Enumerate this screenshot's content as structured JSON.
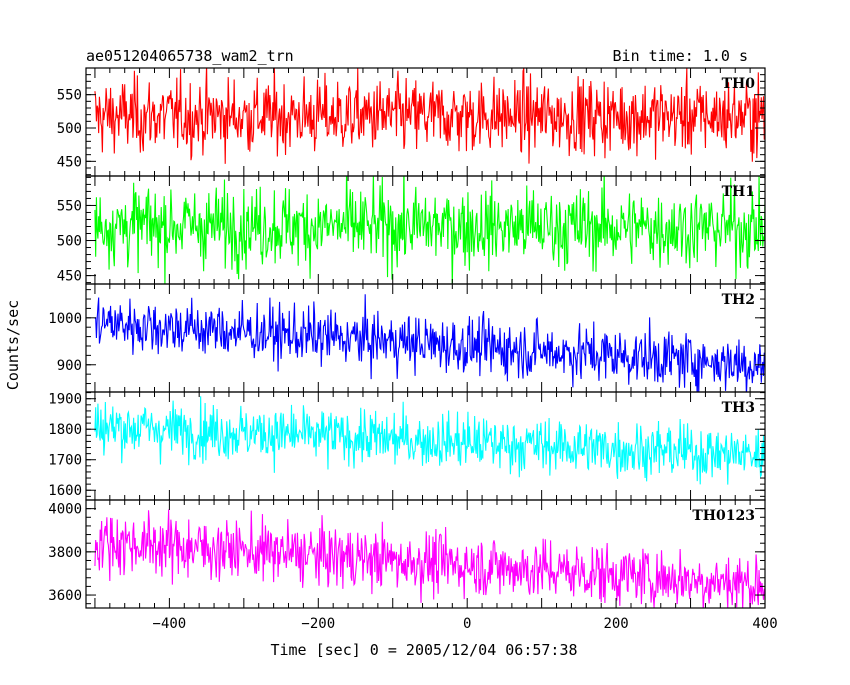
{
  "chart_data": {
    "type": "line",
    "title_left": "ae051204065738_wam2_trn",
    "title_right": "Bin time: 1.0 s",
    "xlabel": "Time [sec] 0 = 2005/12/04 06:57:38",
    "ylabel": "Counts/sec",
    "x_range": [
      -512,
      400
    ],
    "x_ticks": [
      -400,
      -200,
      0,
      200,
      400
    ],
    "x_tick_labels": [
      "−400",
      "−200",
      "0",
      "200",
      "400"
    ],
    "bin_time": 1.0,
    "panels": [
      {
        "name": "TH0",
        "color": "#ff0000",
        "ylim": [
          428,
          590
        ],
        "y_ticks": [
          450,
          500,
          550
        ],
        "y_tick_labels": [
          "450",
          "500",
          "550"
        ],
        "trend": {
          "start": 518,
          "end": 518
        },
        "noise_sd": 28
      },
      {
        "name": "TH1",
        "color": "#00ff00",
        "ylim": [
          438,
          592
        ],
        "y_ticks": [
          450,
          500,
          550
        ],
        "y_tick_labels": [
          "450",
          "500",
          "550"
        ],
        "trend": {
          "start": 522,
          "end": 518
        },
        "noise_sd": 28
      },
      {
        "name": "TH2",
        "color": "#0000ff",
        "ylim": [
          842,
          1072
        ],
        "y_ticks": [
          900,
          1000
        ],
        "y_tick_labels": [
          "900",
          "1000"
        ],
        "trend": {
          "start": 990,
          "end": 900
        },
        "noise_sd": 30
      },
      {
        "name": "TH3",
        "color": "#00ffff",
        "ylim": [
          1568,
          1922
        ],
        "y_ticks": [
          1600,
          1700,
          1800,
          1900
        ],
        "y_tick_labels": [
          "1600",
          "1700",
          "1800",
          "1900"
        ],
        "trend": {
          "start": 1810,
          "end": 1715
        },
        "noise_sd": 45
      },
      {
        "name": "TH0123",
        "color": "#ff00ff",
        "ylim": [
          3540,
          4040
        ],
        "y_ticks": [
          3600,
          3800,
          4000
        ],
        "y_tick_labels": [
          "3600",
          "3800",
          "4000"
        ],
        "trend": {
          "start": 3850,
          "end": 3650
        },
        "noise_sd": 70
      }
    ]
  }
}
